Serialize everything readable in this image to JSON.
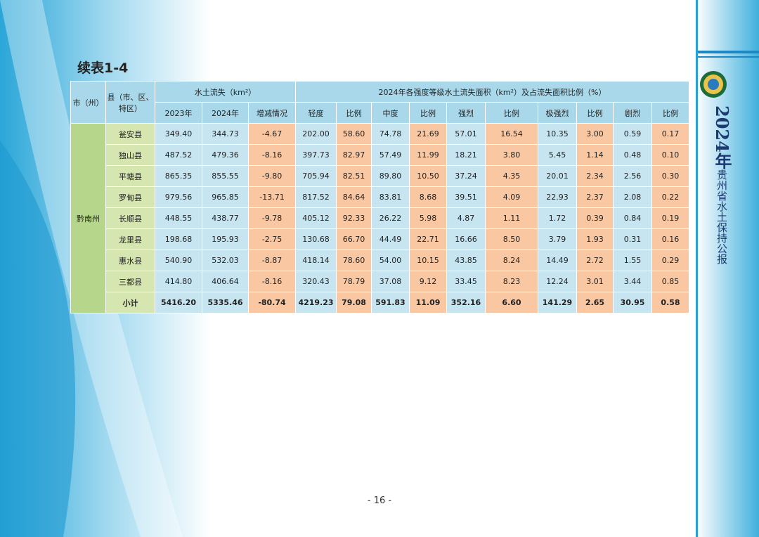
{
  "title": "续表1-4",
  "table": {
    "header": {
      "city": "市（州）",
      "county": "县（市、区、特区）",
      "group1": "水土流失（km²）",
      "group2": "2024年各强度等级水土流失面积（km²）及占流失面积比例（%）",
      "columns": [
        "2023年",
        "2024年",
        "增减情况",
        "轻度",
        "比例",
        "中度",
        "比例",
        "强烈",
        "比例",
        "极强烈",
        "比例",
        "剧烈",
        "比例"
      ]
    },
    "city": "黔南州",
    "rows": [
      [
        "瓮安县",
        "349.40",
        "344.73",
        "-4.67",
        "202.00",
        "58.60",
        "74.78",
        "21.69",
        "57.01",
        "16.54",
        "10.35",
        "3.00",
        "0.59",
        "0.17"
      ],
      [
        "独山县",
        "487.52",
        "479.36",
        "-8.16",
        "397.73",
        "82.97",
        "57.49",
        "11.99",
        "18.21",
        "3.80",
        "5.45",
        "1.14",
        "0.48",
        "0.10"
      ],
      [
        "平塘县",
        "865.35",
        "855.55",
        "-9.80",
        "705.94",
        "82.51",
        "89.80",
        "10.50",
        "37.24",
        "4.35",
        "20.01",
        "2.34",
        "2.56",
        "0.30"
      ],
      [
        "罗甸县",
        "979.56",
        "965.85",
        "-13.71",
        "817.52",
        "84.64",
        "83.81",
        "8.68",
        "39.51",
        "4.09",
        "22.93",
        "2.37",
        "2.08",
        "0.22"
      ],
      [
        "长顺县",
        "448.55",
        "438.77",
        "-9.78",
        "405.12",
        "92.33",
        "26.22",
        "5.98",
        "4.87",
        "1.11",
        "1.72",
        "0.39",
        "0.84",
        "0.19"
      ],
      [
        "龙里县",
        "198.68",
        "195.93",
        "-2.75",
        "130.68",
        "66.70",
        "44.49",
        "22.71",
        "16.66",
        "8.50",
        "3.79",
        "1.93",
        "0.31",
        "0.16"
      ],
      [
        "惠水县",
        "540.90",
        "532.03",
        "-8.87",
        "418.14",
        "78.60",
        "54.00",
        "10.15",
        "43.85",
        "8.24",
        "14.49",
        "2.72",
        "1.55",
        "0.29"
      ],
      [
        "三都县",
        "414.80",
        "406.64",
        "-8.16",
        "320.43",
        "78.79",
        "37.08",
        "9.12",
        "33.45",
        "8.23",
        "12.24",
        "3.01",
        "3.44",
        "0.85"
      ],
      [
        "小计",
        "5416.20",
        "5335.46",
        "-80.74",
        "4219.23",
        "79.08",
        "591.83",
        "11.09",
        "352.16",
        "6.60",
        "141.29",
        "2.65",
        "30.95",
        "0.58"
      ]
    ]
  },
  "side": {
    "year": "2024年",
    "name": "贵州省水土保持公报"
  },
  "page_number": "- 16 -"
}
